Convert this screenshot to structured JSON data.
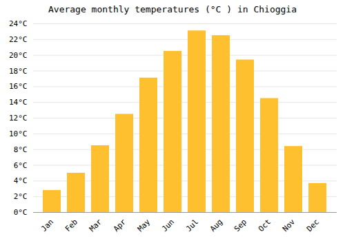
{
  "chart_data": {
    "type": "bar",
    "title": "Average monthly temperatures (°C ) in Chioggia",
    "categories": [
      "Jan",
      "Feb",
      "Mar",
      "Apr",
      "May",
      "Jun",
      "Jul",
      "Aug",
      "Sep",
      "Oct",
      "Nov",
      "Dec"
    ],
    "values": [
      2.8,
      5.0,
      8.5,
      12.5,
      17.1,
      20.5,
      23.1,
      22.5,
      19.4,
      14.5,
      8.4,
      3.7
    ],
    "color": "#FFC030",
    "ylim": [
      0,
      24
    ],
    "yticks": [
      {
        "value": 0,
        "label": "0°C"
      },
      {
        "value": 2,
        "label": "2°C"
      },
      {
        "value": 4,
        "label": "4°C"
      },
      {
        "value": 6,
        "label": "6°C"
      },
      {
        "value": 8,
        "label": "8°C"
      },
      {
        "value": 10,
        "label": "10°C"
      },
      {
        "value": 12,
        "label": "12°C"
      },
      {
        "value": 14,
        "label": "14°C"
      },
      {
        "value": 16,
        "label": "16°C"
      },
      {
        "value": 18,
        "label": "18°C"
      },
      {
        "value": 20,
        "label": "20°C"
      },
      {
        "value": 22,
        "label": "22°C"
      },
      {
        "value": 24,
        "label": "24°C"
      }
    ],
    "grid": true
  }
}
